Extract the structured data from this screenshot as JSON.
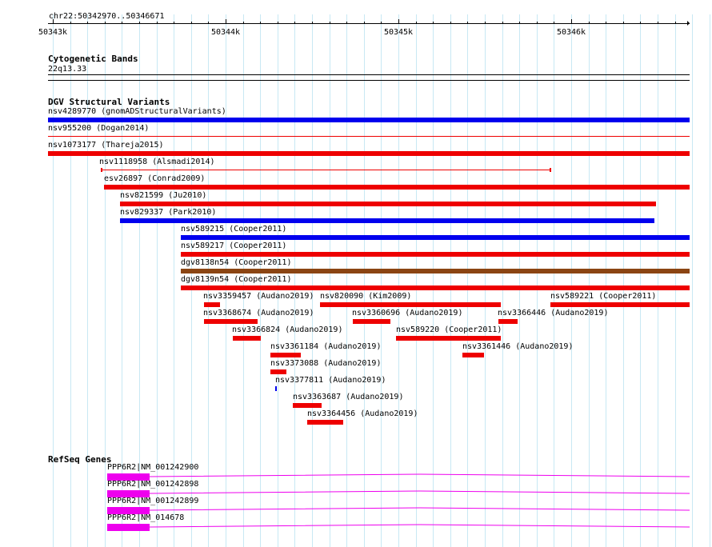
{
  "ruler": {
    "location": "chr22:50342970..50346671",
    "ticks": [
      "50343k",
      "50344k",
      "50345k",
      "50346k"
    ]
  },
  "tracks": {
    "cyto": {
      "title": "Cytogenetic Bands",
      "band": "22q13.33"
    },
    "dgv": {
      "title": "DGV Structural Variants",
      "features": [
        {
          "label": "nsv4289770 (gnomADStructuralVariants)",
          "color": "#0000ee"
        },
        {
          "label": "nsv955200 (Dogan2014)",
          "color": "#ee0000"
        },
        {
          "label": "nsv1073177 (Thareja2015)",
          "color": "#ee0000"
        },
        {
          "label": "nsv1118958 (Alsmadi2014)",
          "color": "#ee0000"
        },
        {
          "label": "esv26897 (Conrad2009)",
          "color": "#ee0000"
        },
        {
          "label": "nsv821599 (Ju2010)",
          "color": "#ee0000"
        },
        {
          "label": "nsv829337 (Park2010)",
          "color": "#0000ee"
        },
        {
          "label": "nsv589215 (Cooper2011)",
          "color": "#0000ee"
        },
        {
          "label": "nsv589217 (Cooper2011)",
          "color": "#ee0000"
        },
        {
          "label": "dgv8138n54 (Cooper2011)",
          "color": "#8b4513"
        },
        {
          "label": "dgv8139n54 (Cooper2011)",
          "color": "#ee0000"
        },
        {
          "label": "nsv3359457 (Audano2019)",
          "color": "#ee0000"
        },
        {
          "label": "nsv820090 (Kim2009)",
          "color": "#ee0000"
        },
        {
          "label": "nsv589221 (Cooper2011)",
          "color": "#ee0000"
        },
        {
          "label": "nsv3368674 (Audano2019)",
          "color": "#ee0000"
        },
        {
          "label": "nsv3360696 (Audano2019)",
          "color": "#ee0000"
        },
        {
          "label": "nsv3366446 (Audano2019)",
          "color": "#ee0000"
        },
        {
          "label": "nsv3366824 (Audano2019)",
          "color": "#ee0000"
        },
        {
          "label": "nsv589220 (Cooper2011)",
          "color": "#ee0000"
        },
        {
          "label": "nsv3361184 (Audano2019)",
          "color": "#ee0000"
        },
        {
          "label": "nsv3361446 (Audano2019)",
          "color": "#ee0000"
        },
        {
          "label": "nsv3373088 (Audano2019)",
          "color": "#ee0000"
        },
        {
          "label": "nsv3377811 (Audano2019)",
          "color": "#0000ee"
        },
        {
          "label": "nsv3363687 (Audano2019)",
          "color": "#ee0000"
        },
        {
          "label": "nsv3364456 (Audano2019)",
          "color": "#ee0000"
        }
      ]
    },
    "refseq": {
      "title": "RefSeq Genes",
      "color": "#ee00ee",
      "genes": [
        {
          "label": "PPP6R2|NM_001242900"
        },
        {
          "label": "PPP6R2|NM_001242898"
        },
        {
          "label": "PPP6R2|NM_001242899"
        },
        {
          "label": "PPP6R2|NM_014678"
        }
      ]
    }
  }
}
